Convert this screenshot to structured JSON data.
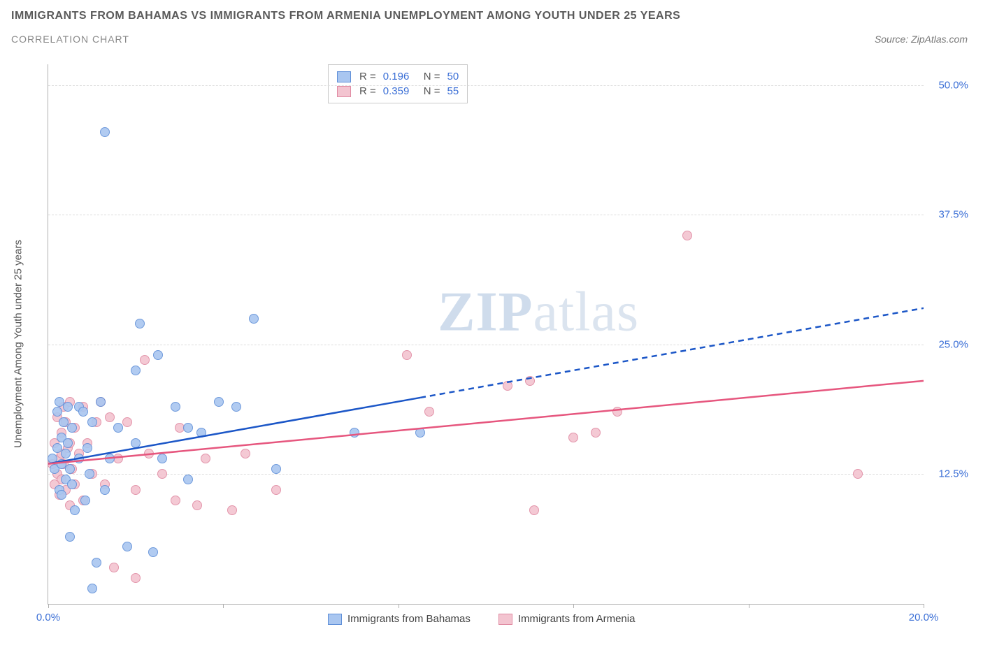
{
  "header": {
    "title": "IMMIGRANTS FROM BAHAMAS VS IMMIGRANTS FROM ARMENIA UNEMPLOYMENT AMONG YOUTH UNDER 25 YEARS",
    "subtitle": "CORRELATION CHART",
    "source": "Source: ZipAtlas.com"
  },
  "chart": {
    "type": "scatter",
    "ylabel": "Unemployment Among Youth under 25 years",
    "watermark_a": "ZIP",
    "watermark_b": "atlas",
    "background_color": "#ffffff",
    "grid_color": "#dddddd",
    "axis_color": "#b0b0b0",
    "tick_label_color": "#3b6fd6",
    "xlim": [
      0,
      20
    ],
    "ylim": [
      0,
      52
    ],
    "xticks": [
      0,
      4,
      8,
      12,
      16,
      20
    ],
    "xtick_labels": [
      "0.0%",
      "",
      "",
      "",
      "",
      "20.0%"
    ],
    "yticks": [
      12.5,
      25.0,
      37.5,
      50.0
    ],
    "ytick_labels": [
      "12.5%",
      "25.0%",
      "37.5%",
      "50.0%"
    ],
    "marker_radius": 7,
    "marker_border_width": 1.2,
    "marker_fill_opacity": 0.28,
    "series": [
      {
        "name": "Immigrants from Bahamas",
        "fill": "#a9c6f0",
        "stroke": "#5f8fd8",
        "trend_color": "#1b56c7",
        "trend": {
          "x1": 0,
          "y1": 13.5,
          "x2": 20,
          "y2": 28.5,
          "solid_until_x": 8.5
        },
        "stats": {
          "R": "0.196",
          "N": "50"
        },
        "points": [
          [
            0.1,
            14.0
          ],
          [
            0.15,
            13.0
          ],
          [
            0.2,
            18.5
          ],
          [
            0.2,
            15.0
          ],
          [
            0.25,
            19.5
          ],
          [
            0.25,
            11.0
          ],
          [
            0.3,
            16.0
          ],
          [
            0.3,
            13.5
          ],
          [
            0.3,
            10.5
          ],
          [
            0.35,
            17.5
          ],
          [
            0.4,
            12.0
          ],
          [
            0.4,
            14.5
          ],
          [
            0.45,
            19.0
          ],
          [
            0.45,
            15.5
          ],
          [
            0.5,
            6.5
          ],
          [
            0.5,
            13.0
          ],
          [
            0.55,
            17.0
          ],
          [
            0.55,
            11.5
          ],
          [
            0.6,
            9.0
          ],
          [
            0.7,
            14.0
          ],
          [
            0.7,
            19.0
          ],
          [
            0.8,
            18.5
          ],
          [
            0.85,
            10.0
          ],
          [
            0.9,
            15.0
          ],
          [
            0.95,
            12.5
          ],
          [
            1.0,
            17.5
          ],
          [
            1.1,
            4.0
          ],
          [
            1.2,
            19.5
          ],
          [
            1.3,
            11.0
          ],
          [
            1.3,
            45.5
          ],
          [
            1.4,
            14.0
          ],
          [
            1.6,
            17.0
          ],
          [
            1.8,
            5.5
          ],
          [
            2.0,
            22.5
          ],
          [
            2.0,
            15.5
          ],
          [
            2.1,
            27.0
          ],
          [
            2.4,
            5.0
          ],
          [
            2.5,
            24.0
          ],
          [
            2.6,
            14.0
          ],
          [
            2.9,
            19.0
          ],
          [
            3.2,
            17.0
          ],
          [
            3.2,
            12.0
          ],
          [
            3.5,
            16.5
          ],
          [
            3.9,
            19.5
          ],
          [
            4.3,
            19.0
          ],
          [
            4.7,
            27.5
          ],
          [
            5.2,
            13.0
          ],
          [
            7.0,
            16.5
          ],
          [
            8.5,
            16.5
          ],
          [
            1.0,
            1.5
          ]
        ]
      },
      {
        "name": "Immigrants from Armenia",
        "fill": "#f3c4d0",
        "stroke": "#e08aa2",
        "trend_color": "#e6567e",
        "trend": {
          "x1": 0,
          "y1": 13.5,
          "x2": 20,
          "y2": 21.5,
          "solid_until_x": 20
        },
        "stats": {
          "R": "0.359",
          "N": "55"
        },
        "points": [
          [
            0.1,
            13.5
          ],
          [
            0.15,
            15.5
          ],
          [
            0.2,
            12.5
          ],
          [
            0.2,
            18.0
          ],
          [
            0.25,
            14.0
          ],
          [
            0.25,
            10.5
          ],
          [
            0.3,
            16.5
          ],
          [
            0.3,
            12.0
          ],
          [
            0.35,
            19.0
          ],
          [
            0.35,
            13.5
          ],
          [
            0.4,
            11.0
          ],
          [
            0.4,
            17.5
          ],
          [
            0.45,
            15.0
          ],
          [
            0.5,
            19.5
          ],
          [
            0.5,
            9.5
          ],
          [
            0.55,
            13.0
          ],
          [
            0.6,
            17.0
          ],
          [
            0.6,
            11.5
          ],
          [
            0.7,
            14.5
          ],
          [
            0.8,
            19.0
          ],
          [
            0.8,
            10.0
          ],
          [
            0.9,
            15.5
          ],
          [
            1.0,
            12.5
          ],
          [
            1.1,
            17.5
          ],
          [
            1.2,
            19.5
          ],
          [
            1.3,
            11.5
          ],
          [
            1.4,
            18.0
          ],
          [
            1.5,
            3.5
          ],
          [
            1.6,
            14.0
          ],
          [
            1.8,
            17.5
          ],
          [
            2.0,
            11.0
          ],
          [
            2.0,
            2.5
          ],
          [
            2.2,
            23.5
          ],
          [
            2.3,
            14.5
          ],
          [
            2.6,
            12.5
          ],
          [
            2.9,
            10.0
          ],
          [
            3.0,
            17.0
          ],
          [
            3.4,
            9.5
          ],
          [
            3.6,
            14.0
          ],
          [
            4.2,
            9.0
          ],
          [
            4.5,
            14.5
          ],
          [
            5.2,
            11.0
          ],
          [
            8.2,
            24.0
          ],
          [
            8.7,
            18.5
          ],
          [
            10.5,
            21.0
          ],
          [
            11.0,
            21.5
          ],
          [
            11.1,
            9.0
          ],
          [
            12.0,
            16.0
          ],
          [
            12.5,
            16.5
          ],
          [
            13.0,
            18.5
          ],
          [
            14.6,
            35.5
          ],
          [
            18.5,
            12.5
          ],
          [
            0.15,
            11.5
          ],
          [
            0.3,
            14.5
          ],
          [
            0.5,
            15.5
          ]
        ]
      }
    ],
    "legend": {
      "series_label_a": "Immigrants from Bahamas",
      "series_label_b": "Immigrants from Armenia",
      "R_label": "R =",
      "N_label": "N ="
    }
  }
}
